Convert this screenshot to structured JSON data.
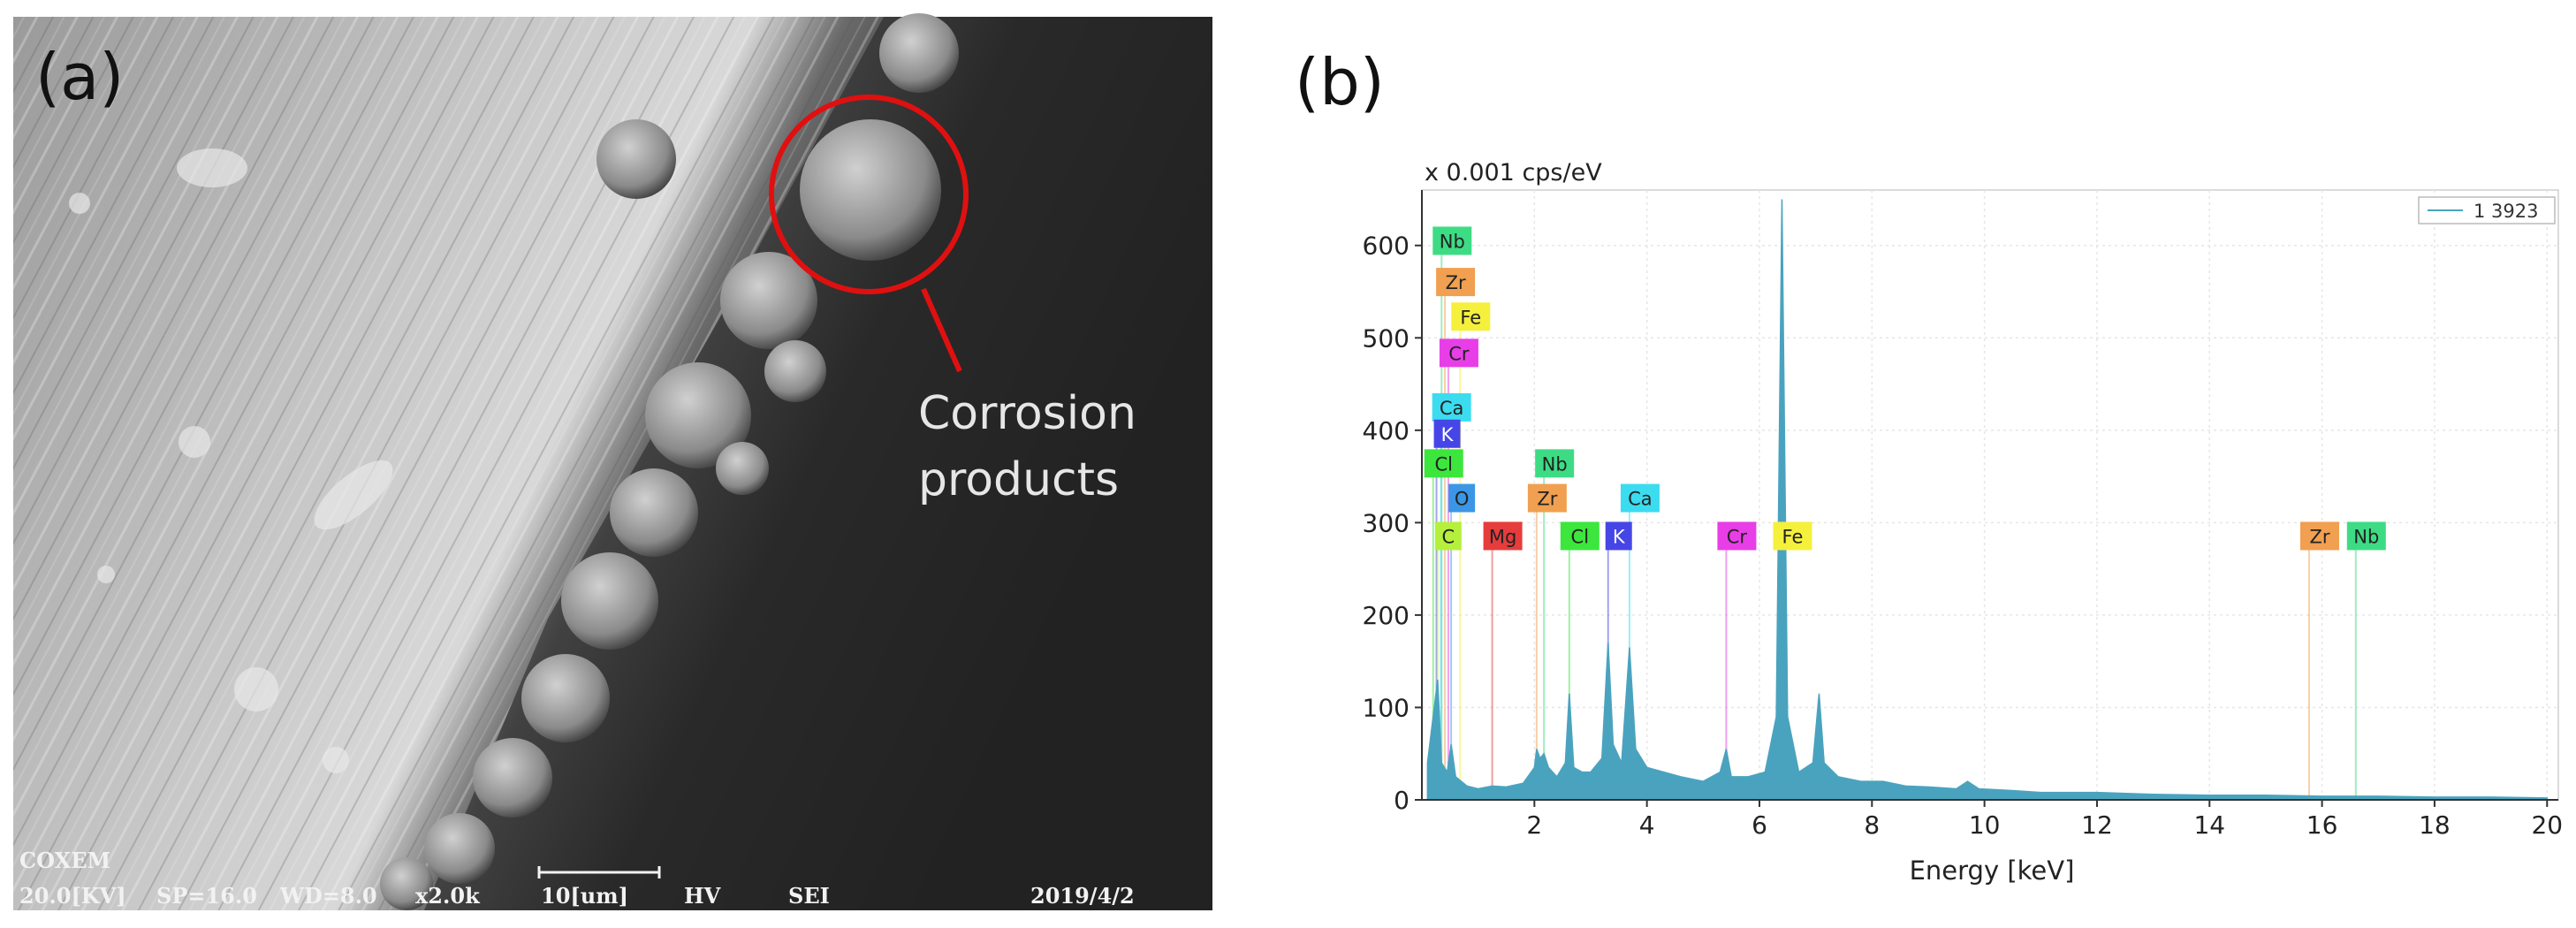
{
  "panel_a": {
    "label": "(a)",
    "annotation": [
      "Corrosion",
      "products"
    ],
    "sem_bar": {
      "brand": "COXEM",
      "items": [
        "20.0[KV]",
        "SP=16.0",
        "WD=8.0",
        "x2.0k",
        "10[um]",
        "HV",
        "SEI",
        "2019/4/2"
      ]
    }
  },
  "panel_b": {
    "label": "(b)"
  },
  "chart_data": {
    "type": "area",
    "y_unit": "x 0.001 cps/eV",
    "x_label": "Energy [keV]",
    "xlim": [
      0,
      20.2
    ],
    "xticks": [
      2,
      4,
      6,
      8,
      10,
      12,
      14,
      16,
      18,
      20
    ],
    "ylim": [
      0,
      660
    ],
    "yticks": [
      0,
      100,
      200,
      300,
      400,
      500,
      600
    ],
    "grid": true,
    "legend": "top-right",
    "x": [
      0.1,
      0.2,
      0.28,
      0.35,
      0.45,
      0.52,
      0.6,
      0.7,
      0.8,
      1.0,
      1.25,
      1.5,
      1.8,
      2.0,
      2.04,
      2.1,
      2.17,
      2.25,
      2.4,
      2.55,
      2.62,
      2.7,
      2.85,
      3.0,
      3.2,
      3.31,
      3.4,
      3.55,
      3.69,
      3.8,
      4.0,
      4.3,
      4.6,
      5.0,
      5.3,
      5.41,
      5.5,
      5.8,
      6.1,
      6.3,
      6.4,
      6.5,
      6.7,
      6.95,
      7.06,
      7.15,
      7.4,
      7.8,
      8.2,
      8.6,
      9.0,
      9.5,
      9.7,
      9.9,
      10.5,
      11,
      12,
      13,
      14,
      15,
      16,
      17,
      18,
      19,
      20
    ],
    "series": [
      {
        "name": "1 3923",
        "color": "#4aa3be",
        "values": [
          40,
          90,
          130,
          40,
          30,
          60,
          25,
          20,
          15,
          12,
          15,
          14,
          18,
          35,
          55,
          45,
          50,
          35,
          25,
          40,
          115,
          35,
          30,
          30,
          45,
          170,
          60,
          40,
          165,
          55,
          35,
          30,
          25,
          20,
          30,
          55,
          25,
          25,
          30,
          90,
          650,
          90,
          30,
          40,
          115,
          40,
          25,
          20,
          20,
          15,
          14,
          12,
          20,
          12,
          10,
          8,
          8,
          6,
          5,
          5,
          4,
          4,
          3,
          3,
          2
        ]
      }
    ],
    "element_labels": [
      {
        "text": "Nb",
        "energy": 0.35,
        "color": "#3ddc84"
      },
      {
        "text": "Zr",
        "energy": 0.41,
        "color": "#f0a050"
      },
      {
        "text": "Fe",
        "energy": 0.68,
        "color": "#f5f03c"
      },
      {
        "text": "Cr",
        "energy": 0.47,
        "color": "#e83ee8"
      },
      {
        "text": "Ca",
        "energy": 0.34,
        "color": "#3cdcf0"
      },
      {
        "text": "K",
        "energy": 0.26,
        "color": "#4646e6"
      },
      {
        "text": "Cl",
        "energy": 0.2,
        "color": "#3ce63c"
      },
      {
        "text": "O",
        "energy": 0.52,
        "color": "#3c96e6"
      },
      {
        "text": "C",
        "energy": 0.28,
        "color": "#b4f03c"
      },
      {
        "text": "Mg",
        "energy": 1.25,
        "color": "#e63c3c"
      },
      {
        "text": "Zr",
        "energy": 2.04,
        "color": "#f0a050"
      },
      {
        "text": "Nb",
        "energy": 2.17,
        "color": "#3ddc84"
      },
      {
        "text": "Cl",
        "energy": 2.62,
        "color": "#3ce63c"
      },
      {
        "text": "K",
        "energy": 3.31,
        "color": "#4646e6"
      },
      {
        "text": "Ca",
        "energy": 3.69,
        "color": "#3cdcf0"
      },
      {
        "text": "Cr",
        "energy": 5.41,
        "color": "#e83ee8"
      },
      {
        "text": "Fe",
        "energy": 6.4,
        "color": "#f5f03c"
      },
      {
        "text": "Zr",
        "energy": 15.77,
        "color": "#f0a050"
      },
      {
        "text": "Nb",
        "energy": 16.6,
        "color": "#3ddc84"
      }
    ]
  }
}
